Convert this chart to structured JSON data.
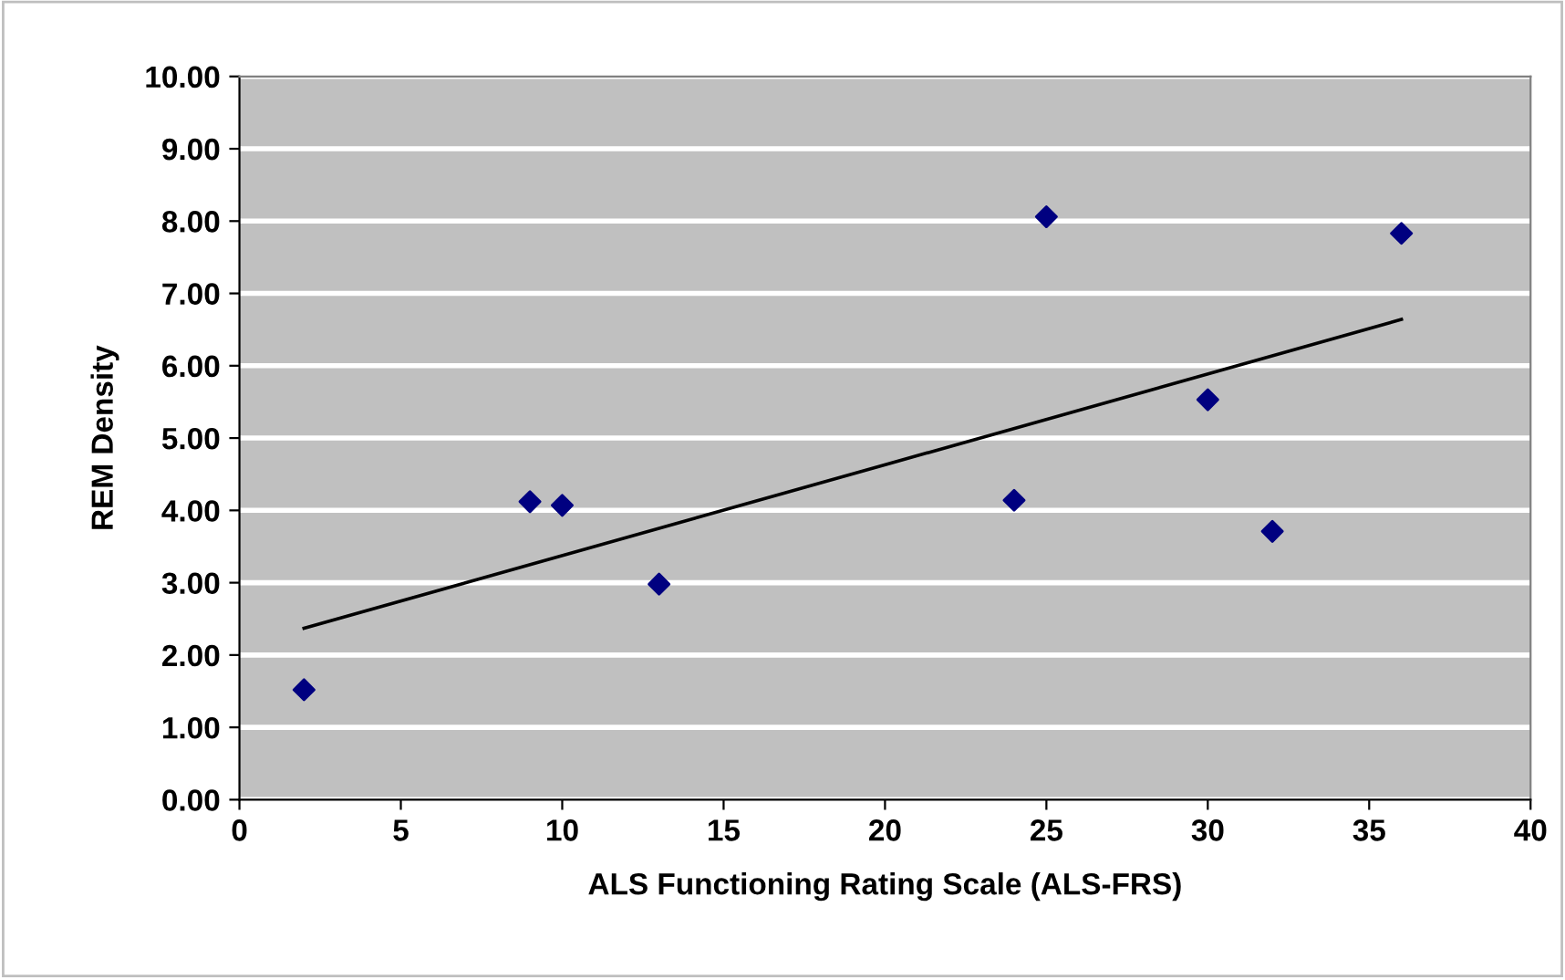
{
  "chart_data": {
    "type": "scatter",
    "xlabel": "ALS Functioning Rating Scale (ALS-FRS)",
    "ylabel": "REM Density",
    "series": [
      {
        "color": "#000080",
        "marker": "diamond",
        "x": [
          2,
          9,
          10,
          13,
          24,
          25,
          30,
          32,
          36
        ],
        "values": [
          1.52,
          4.12,
          4.07,
          2.98,
          4.14,
          8.06,
          5.53,
          3.71,
          7.83
        ]
      },
      {
        "type": "line",
        "color": "#000000",
        "marker": "none",
        "line_style": "solid",
        "x": [
          2,
          36
        ],
        "values": [
          2.37,
          6.64
        ]
      }
    ],
    "xlim": [
      0,
      40
    ],
    "xticks": [
      0,
      5,
      10,
      15,
      20,
      25,
      30,
      35,
      40
    ],
    "ylim": [
      0,
      10
    ],
    "yticks": [
      {
        "value": 0,
        "label": "0.00"
      },
      {
        "value": 1,
        "label": "1.00"
      },
      {
        "value": 2,
        "label": "2.00"
      },
      {
        "value": 3,
        "label": "3.00"
      },
      {
        "value": 4,
        "label": "4.00"
      },
      {
        "value": 5,
        "label": "5.00"
      },
      {
        "value": 6,
        "label": "6.00"
      },
      {
        "value": 7,
        "label": "7.00"
      },
      {
        "value": 8,
        "label": "8.00"
      },
      {
        "value": 9,
        "label": "9.00"
      },
      {
        "value": 10,
        "label": "10.00"
      }
    ],
    "grid": "y",
    "legend": false
  }
}
